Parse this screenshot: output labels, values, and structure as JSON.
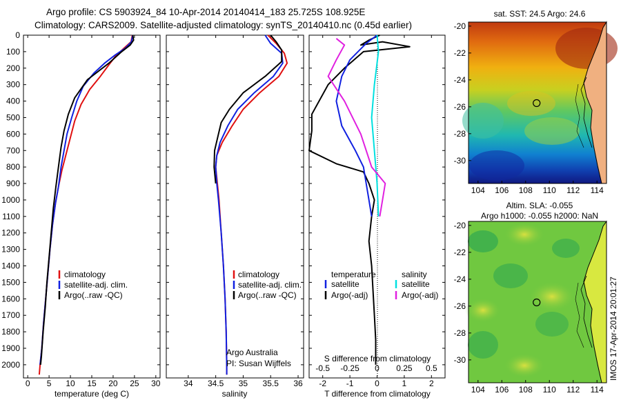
{
  "header": {
    "line1": "Argo profile: CS 5903924_84 10-Apr-2014 20140414_183 25.725S 108.925E",
    "line2": "Climatology: CARS2009. Satellite-adjusted climatology: synTS_20140410.nc (0.45d earlier)"
  },
  "timestamp": "IMOS 17-Apr-2014 20:01:27",
  "chart_data": [
    {
      "id": "temperature",
      "type": "line",
      "xlabel": "temperature (deg C)",
      "xlim": [
        -1,
        31
      ],
      "xticks": [
        0,
        5,
        10,
        15,
        20,
        25,
        30
      ],
      "ylim": [
        2080,
        0
      ],
      "yticks": [
        0,
        100,
        200,
        300,
        400,
        500,
        600,
        700,
        800,
        900,
        1000,
        1100,
        1200,
        1300,
        1400,
        1500,
        1600,
        1700,
        1800,
        1900,
        2000
      ],
      "legend": [
        "climatology",
        "satellite-adj. clim.",
        "Argo(..raw -QC)"
      ],
      "series": [
        {
          "color": "#e01010",
          "points": [
            [
              24.5,
              0
            ],
            [
              24.2,
              40
            ],
            [
              22.5,
              80
            ],
            [
              20.5,
              130
            ],
            [
              19,
              180
            ],
            [
              17,
              250
            ],
            [
              14.5,
              330
            ],
            [
              12.5,
              420
            ],
            [
              11,
              520
            ],
            [
              10,
              620
            ],
            [
              9,
              720
            ],
            [
              8,
              820
            ],
            [
              7.2,
              920
            ],
            [
              6.5,
              1020
            ],
            [
              5.8,
              1150
            ],
            [
              5.2,
              1300
            ],
            [
              4.7,
              1450
            ],
            [
              4.2,
              1600
            ],
            [
              3.7,
              1750
            ],
            [
              3.3,
              1900
            ],
            [
              2.9,
              2000
            ],
            [
              2.7,
              2060
            ]
          ]
        },
        {
          "color": "#1020e0",
          "points": [
            [
              24.6,
              0
            ],
            [
              24.3,
              40
            ],
            [
              22.8,
              80
            ],
            [
              20.5,
              120
            ],
            [
              18,
              170
            ],
            [
              15.5,
              230
            ],
            [
              13,
              310
            ],
            [
              11.5,
              400
            ],
            [
              10.3,
              500
            ],
            [
              9.2,
              600
            ],
            [
              8.5,
              700
            ],
            [
              7.8,
              800
            ],
            [
              7.2,
              920
            ],
            [
              6.5,
              1020
            ],
            [
              5.8,
              1150
            ],
            [
              5.2,
              1300
            ],
            [
              4.7,
              1450
            ],
            [
              4.2,
              1600
            ],
            [
              3.7,
              1750
            ],
            [
              3.3,
              1900
            ],
            [
              2.9,
              2000
            ]
          ]
        },
        {
          "color": "#000000",
          "points": [
            [
              24.6,
              0
            ],
            [
              24.8,
              30
            ],
            [
              24,
              60
            ],
            [
              22,
              100
            ],
            [
              19,
              170
            ],
            [
              14,
              270
            ],
            [
              11,
              380
            ],
            [
              9.5,
              480
            ],
            [
              8.5,
              580
            ],
            [
              7.8,
              680
            ],
            [
              7.2,
              800
            ],
            [
              6.6,
              920
            ],
            [
              6,
              1050
            ],
            [
              5.5,
              1200
            ],
            [
              5,
              1350
            ],
            [
              4.5,
              1500
            ],
            [
              4.1,
              1650
            ],
            [
              3.6,
              1800
            ],
            [
              3.2,
              1950
            ],
            [
              3,
              2000
            ]
          ]
        }
      ]
    },
    {
      "id": "salinity",
      "type": "line",
      "xlabel": "salinity",
      "xlim": [
        33.6,
        36.1
      ],
      "xticks": [
        34,
        34.5,
        35,
        35.5,
        36
      ],
      "ylim": [
        2080,
        0
      ],
      "legend": [
        "climatology",
        "satellite-adj. clim.",
        "Argo(..raw -QC)"
      ],
      "annotation": [
        "Argo Australia",
        "PI: Susan Wijffels"
      ],
      "series": [
        {
          "color": "#e01010",
          "points": [
            [
              35.45,
              0
            ],
            [
              35.6,
              50
            ],
            [
              35.75,
              110
            ],
            [
              35.8,
              170
            ],
            [
              35.65,
              250
            ],
            [
              35.3,
              350
            ],
            [
              35,
              450
            ],
            [
              34.8,
              550
            ],
            [
              34.62,
              650
            ],
            [
              34.52,
              730
            ],
            [
              34.5,
              800
            ],
            [
              34.53,
              900
            ],
            [
              34.56,
              1000
            ],
            [
              34.6,
              1200
            ],
            [
              34.64,
              1400
            ],
            [
              34.67,
              1600
            ],
            [
              34.69,
              1800
            ],
            [
              34.7,
              2000
            ],
            [
              34.7,
              2060
            ]
          ]
        },
        {
          "color": "#1020e0",
          "points": [
            [
              35.4,
              0
            ],
            [
              35.5,
              50
            ],
            [
              35.7,
              110
            ],
            [
              35.72,
              170
            ],
            [
              35.55,
              250
            ],
            [
              35.2,
              350
            ],
            [
              34.9,
              450
            ],
            [
              34.72,
              550
            ],
            [
              34.58,
              650
            ],
            [
              34.52,
              730
            ],
            [
              34.5,
              800
            ],
            [
              34.52,
              900
            ],
            [
              34.55,
              1000
            ],
            [
              34.6,
              1200
            ],
            [
              34.64,
              1400
            ],
            [
              34.67,
              1600
            ],
            [
              34.69,
              1800
            ],
            [
              34.7,
              2000
            ],
            [
              34.7,
              2060
            ]
          ]
        },
        {
          "color": "#000000",
          "points": [
            [
              35.5,
              0
            ],
            [
              35.6,
              40
            ],
            [
              35.7,
              90
            ],
            [
              35.7,
              160
            ],
            [
              35.4,
              250
            ],
            [
              35,
              350
            ],
            [
              34.75,
              450
            ],
            [
              34.6,
              530
            ],
            [
              34.55,
              600
            ],
            [
              34.48,
              700
            ],
            [
              34.47,
              800
            ],
            [
              34.5,
              900
            ]
          ]
        }
      ]
    },
    {
      "id": "difference",
      "type": "line",
      "xlabel": "T difference from climatology",
      "xlabel2": "S difference from climatology",
      "xlim": [
        -2.5,
        2.5
      ],
      "xticks": [
        -2,
        -1,
        0,
        1,
        2
      ],
      "sticks": [
        "-0.5",
        "-0.25",
        "0",
        "0.25",
        "0.5"
      ],
      "sticks_pos": [
        -2,
        -1,
        0,
        1,
        2
      ],
      "ylim": [
        2080,
        0
      ],
      "legend": [
        {
          "head": "temperature",
          "items": [
            "satellite",
            "Argo(-adj)"
          ]
        },
        {
          "head": "salinity",
          "items": [
            "satellite",
            "Argo(-adj)"
          ]
        }
      ],
      "series": [
        {
          "color": "#000000",
          "points": [
            [
              0.1,
              0
            ],
            [
              -0.3,
              30
            ],
            [
              -0.6,
              60
            ],
            [
              0.2,
              40
            ],
            [
              1.2,
              70
            ],
            [
              -0.5,
              100
            ],
            [
              -1.2,
              200
            ],
            [
              -1.8,
              300
            ],
            [
              -2.4,
              480
            ],
            [
              -2.4,
              580
            ],
            [
              -2.5,
              700
            ],
            [
              -1.5,
              780
            ],
            [
              -0.5,
              830
            ],
            [
              -0.3,
              900
            ],
            [
              -0.1,
              1000
            ],
            [
              -0.2,
              1100
            ],
            [
              -0.3,
              1250
            ],
            [
              -0.2,
              1400
            ],
            [
              -0.15,
              1550
            ],
            [
              -0.1,
              1700
            ],
            [
              -0.05,
              1850
            ],
            [
              -0.05,
              2000
            ]
          ]
        },
        {
          "color": "#1020e0",
          "points": [
            [
              0,
              0
            ],
            [
              -0.4,
              50
            ],
            [
              -1,
              150
            ],
            [
              -1.3,
              250
            ],
            [
              -1.5,
              400
            ],
            [
              -1.3,
              550
            ],
            [
              -0.8,
              700
            ],
            [
              -0.5,
              800
            ],
            [
              -0.4,
              900
            ],
            [
              -0.3,
              1000
            ],
            [
              -0.2,
              1100
            ]
          ]
        },
        {
          "color": "#00e0e0",
          "points": [
            [
              0,
              0
            ],
            [
              0.05,
              100
            ],
            [
              -0.1,
              300
            ],
            [
              -0.2,
              500
            ],
            [
              -0.1,
              700
            ],
            [
              0,
              900
            ],
            [
              0.05,
              1100
            ]
          ]
        },
        {
          "color": "#e020e0",
          "points": [
            [
              -1.5,
              20
            ],
            [
              -1.2,
              60
            ],
            [
              -1.5,
              150
            ],
            [
              -1.8,
              250
            ],
            [
              -1.2,
              400
            ],
            [
              -0.6,
              600
            ],
            [
              -0.2,
              800
            ],
            [
              0.3,
              900
            ],
            [
              0.2,
              1000
            ],
            [
              0.1,
              1100
            ]
          ]
        }
      ]
    },
    {
      "id": "sst-map",
      "type": "heatmap",
      "title": "sat. SST: 24.5 Argo: 24.6",
      "xlim": [
        103.2,
        114.8
      ],
      "ylim": [
        -31.7,
        -19.7
      ],
      "xticks": [
        104,
        106,
        108,
        110,
        112,
        114
      ],
      "yticks": [
        -20,
        -22,
        -24,
        -26,
        -28,
        -30
      ],
      "marker": [
        108.925,
        -25.725
      ]
    },
    {
      "id": "sla-map",
      "type": "heatmap",
      "title": "Altim. SLA: -0.055",
      "title2": "Argo h1000: -0.055 h2000: NaN",
      "xlim": [
        103.2,
        114.8
      ],
      "ylim": [
        -31.7,
        -19.7
      ],
      "xticks": [
        104,
        106,
        108,
        110,
        112,
        114
      ],
      "yticks": [
        -20,
        -22,
        -24,
        -26,
        -28,
        -30
      ],
      "marker": [
        108.925,
        -25.725
      ]
    }
  ]
}
